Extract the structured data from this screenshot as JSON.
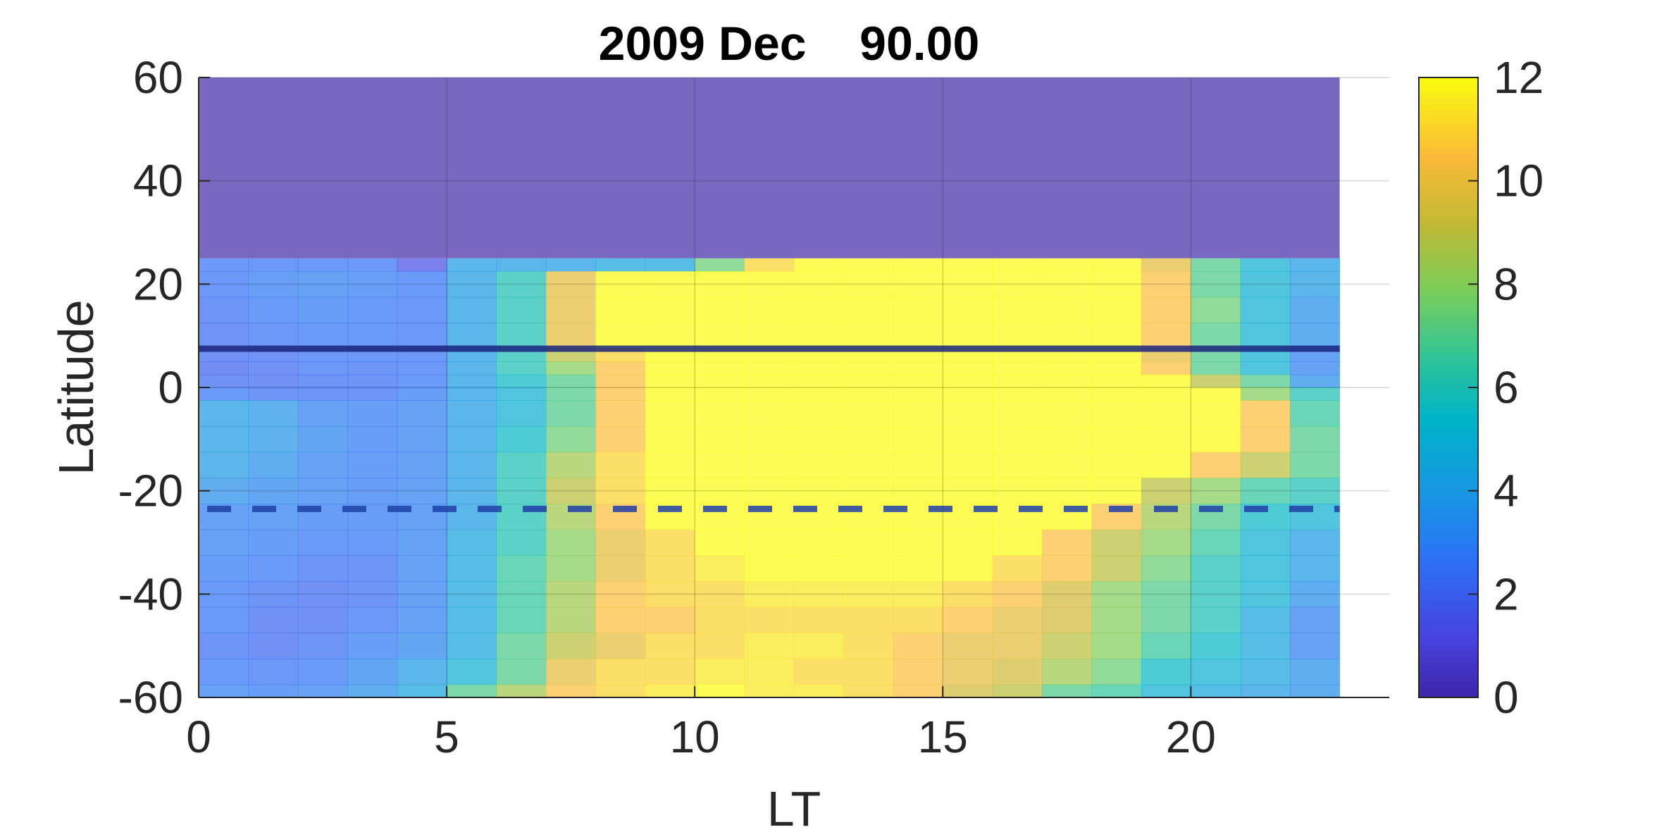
{
  "chart_data": {
    "type": "heatmap",
    "title": "2009 Dec    90.00",
    "xlabel": "LT",
    "ylabel": "Latitude",
    "xlim": [
      0,
      24
    ],
    "ylim": [
      -60,
      60
    ],
    "x_ticks": [
      0,
      5,
      10,
      15,
      20
    ],
    "y_ticks": [
      60,
      40,
      20,
      0,
      -20,
      -40,
      -60
    ],
    "colorbar": {
      "clim": [
        0,
        12
      ],
      "ticks": [
        12,
        10,
        8,
        6,
        4,
        2,
        0
      ],
      "colormap": "parula"
    },
    "grid": true,
    "masked_region": {
      "lat_min": 25,
      "lat_max": 60,
      "color": "#7868c0"
    },
    "reference_lines": [
      {
        "latitude": 7.5,
        "style": "solid",
        "color": "#1a237e"
      },
      {
        "latitude": -23.5,
        "style": "dashed",
        "color": "#1e3fa8"
      }
    ],
    "x_columns": [
      0,
      1,
      2,
      3,
      4,
      5,
      6,
      7,
      8,
      9,
      10,
      11,
      12,
      13,
      14,
      15,
      16,
      17,
      18,
      19,
      20,
      21,
      22
    ],
    "lat_rows": [
      {
        "lat_top": 25,
        "lat_bottom": 22.5,
        "values": [
          2.5,
          2.5,
          2.5,
          2.5,
          1.5,
          4,
          4,
          4,
          4.5,
          4.5,
          7.5,
          11,
          12,
          12,
          12,
          12,
          12,
          12,
          12,
          10,
          7,
          5,
          4
        ]
      },
      {
        "lat_top": 22.5,
        "lat_bottom": 17.5,
        "values": [
          2.5,
          2.8,
          3,
          2.8,
          2.6,
          4,
          6,
          10,
          12,
          12,
          12,
          12,
          12,
          12,
          12,
          12,
          12,
          12,
          12,
          10.5,
          7,
          5,
          4
        ]
      },
      {
        "lat_top": 17.5,
        "lat_bottom": 12.5,
        "values": [
          2.4,
          2.6,
          2.8,
          2.6,
          2.5,
          4,
          6,
          10,
          12,
          12,
          12,
          12,
          12,
          12,
          12,
          12,
          12,
          12,
          12,
          10.5,
          7.5,
          5,
          3.5
        ]
      },
      {
        "lat_top": 12.5,
        "lat_bottom": 7.5,
        "values": [
          2.3,
          2.5,
          2.6,
          2.6,
          2.5,
          4,
          6,
          10,
          12,
          12,
          12,
          12,
          12,
          12,
          12,
          12,
          12,
          12,
          12,
          10.5,
          7,
          5,
          3.5
        ]
      },
      {
        "lat_top": 7.5,
        "lat_bottom": 5,
        "values": [
          2.2,
          2.3,
          2.5,
          2.5,
          2.5,
          4,
          6,
          9,
          11,
          12,
          12,
          12,
          12,
          12,
          12,
          12,
          12,
          12,
          12,
          10,
          7,
          5,
          3
        ]
      },
      {
        "lat_top": 5,
        "lat_bottom": 2.5,
        "values": [
          2,
          2.2,
          2.5,
          2.4,
          2.5,
          4,
          6,
          8,
          10.5,
          12,
          12,
          12,
          12,
          12,
          12,
          12,
          12,
          12,
          12,
          10.5,
          7,
          5,
          3
        ]
      },
      {
        "lat_top": 2.5,
        "lat_bottom": 0,
        "values": [
          2.2,
          2.2,
          2.4,
          2.4,
          2.6,
          4,
          5.5,
          7,
          10.5,
          12,
          12,
          12,
          12,
          12,
          12,
          12,
          12,
          12,
          12,
          12,
          9,
          7,
          3.5
        ]
      },
      {
        "lat_top": 0,
        "lat_bottom": -2.5,
        "values": [
          2.6,
          2.4,
          2.4,
          2.4,
          2.8,
          4,
          5,
          7,
          10.5,
          12,
          12,
          12,
          12,
          12,
          12,
          12,
          12,
          12,
          12,
          12,
          12,
          8,
          6
        ]
      },
      {
        "lat_top": -2.5,
        "lat_bottom": -7.5,
        "values": [
          4,
          3.8,
          3,
          2.8,
          3,
          4,
          5,
          7,
          10.5,
          12,
          12,
          12,
          12,
          12,
          12,
          12,
          12,
          12,
          12,
          12,
          12,
          10.5,
          6.5
        ]
      },
      {
        "lat_top": -7.5,
        "lat_bottom": -12.5,
        "values": [
          4,
          3.8,
          3.2,
          2.8,
          3,
          4,
          5.5,
          7.5,
          10.5,
          12,
          12,
          12,
          12,
          12,
          12,
          12,
          12,
          12,
          12,
          12,
          12,
          10.5,
          7
        ]
      },
      {
        "lat_top": -12.5,
        "lat_bottom": -17.5,
        "values": [
          4,
          3.5,
          3,
          2.8,
          3,
          4,
          6,
          8.5,
          11,
          12,
          12,
          12,
          12,
          12,
          12,
          12,
          12,
          12,
          12,
          12,
          10.5,
          9,
          7
        ]
      },
      {
        "lat_top": -17.5,
        "lat_bottom": -22.5,
        "values": [
          3.5,
          3.2,
          3,
          2.8,
          3,
          4,
          6,
          9,
          11,
          12,
          12,
          12,
          12,
          12,
          12,
          12,
          12,
          12,
          12,
          9,
          8,
          6.5,
          6
        ]
      },
      {
        "lat_top": -22.5,
        "lat_bottom": -27.5,
        "values": [
          3,
          3,
          2.8,
          2.8,
          3,
          4,
          6,
          8.5,
          10.5,
          12,
          12,
          12,
          12,
          12,
          12,
          12,
          12,
          12,
          10.5,
          8.5,
          7,
          5.5,
          5
        ]
      },
      {
        "lat_top": -27.5,
        "lat_bottom": -32.5,
        "values": [
          3,
          2.8,
          2.6,
          2.6,
          3,
          4.5,
          6,
          8,
          10,
          11,
          12,
          12,
          12,
          12,
          12,
          12,
          12,
          10.5,
          9,
          8,
          6.5,
          5,
          4
        ]
      },
      {
        "lat_top": -32.5,
        "lat_bottom": -37.5,
        "values": [
          2.8,
          2.6,
          2.4,
          2.4,
          3,
          4.5,
          6.5,
          8,
          10,
          11,
          11.5,
          12,
          12,
          12,
          12,
          12,
          11,
          10.5,
          9,
          7.5,
          6,
          5,
          4
        ]
      },
      {
        "lat_top": -37.5,
        "lat_bottom": -42.5,
        "values": [
          2.6,
          2.4,
          2.2,
          2.4,
          3,
          4.5,
          6.5,
          8.5,
          10.5,
          11,
          11,
          11.5,
          11.5,
          11.5,
          11.5,
          11,
          10.5,
          9.5,
          8,
          7,
          6,
          5,
          3.5
        ]
      },
      {
        "lat_top": -42.5,
        "lat_bottom": -47.5,
        "values": [
          2.6,
          2.2,
          2.2,
          2.5,
          3,
          4.5,
          6.5,
          8.5,
          10.5,
          10.5,
          11,
          11,
          11,
          11,
          11,
          10.5,
          10,
          9.5,
          8,
          7,
          6,
          4.5,
          3
        ]
      },
      {
        "lat_top": -47.5,
        "lat_bottom": -52.5,
        "values": [
          2.4,
          2.2,
          2.4,
          2.8,
          3.2,
          4.5,
          7,
          9,
          10,
          11,
          11,
          11.5,
          11.5,
          11,
          10.5,
          10,
          10,
          9,
          8,
          6.5,
          5.5,
          4.5,
          3
        ]
      },
      {
        "lat_top": -52.5,
        "lat_bottom": -57.5,
        "values": [
          2.6,
          2.5,
          2.6,
          3.2,
          4,
          5,
          7,
          10,
          11,
          11,
          11.5,
          11.5,
          11,
          11,
          10.5,
          10,
          9.5,
          8.5,
          7.5,
          5.5,
          5,
          4.5,
          3.5
        ]
      },
      {
        "lat_top": -57.5,
        "lat_bottom": -60,
        "values": [
          3,
          2.8,
          3,
          3.5,
          4.5,
          7,
          8.5,
          10.5,
          11,
          11.5,
          12,
          11.5,
          11.5,
          11,
          10.5,
          9.5,
          9,
          7,
          6.5,
          5,
          4.5,
          4,
          3.5
        ]
      }
    ]
  }
}
